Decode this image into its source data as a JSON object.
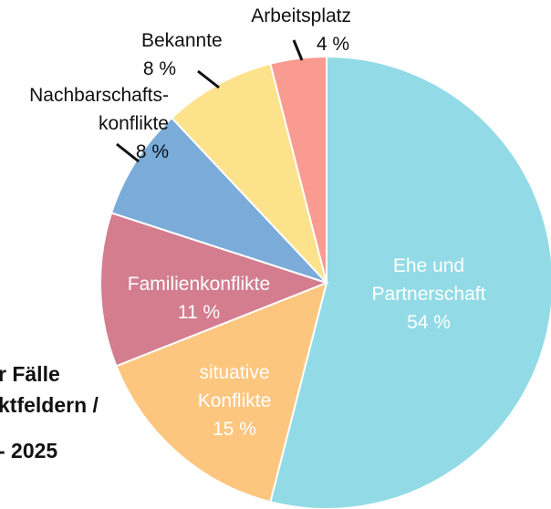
{
  "chart_data": {
    "type": "pie",
    "title_lines": [
      "r Fälle",
      "ktfeldern /",
      "- 2025"
    ],
    "categories": [
      "Ehe und\nPartnerschaft",
      "situative\nKonflikte",
      "Familienkonflikte",
      "Nachbarschafts-\nkonflikte",
      "Bekannte",
      "Arbeitsplatz"
    ],
    "values": [
      54,
      15,
      11,
      8,
      8,
      4
    ],
    "value_labels": [
      "54 %",
      "15 %",
      "11 %",
      "8 %",
      "8 %",
      "4 %"
    ],
    "colors": [
      "#92dbe6",
      "#fdc67f",
      "#d37d8f",
      "#7aabd9",
      "#fde28c",
      "#f99b91"
    ]
  }
}
